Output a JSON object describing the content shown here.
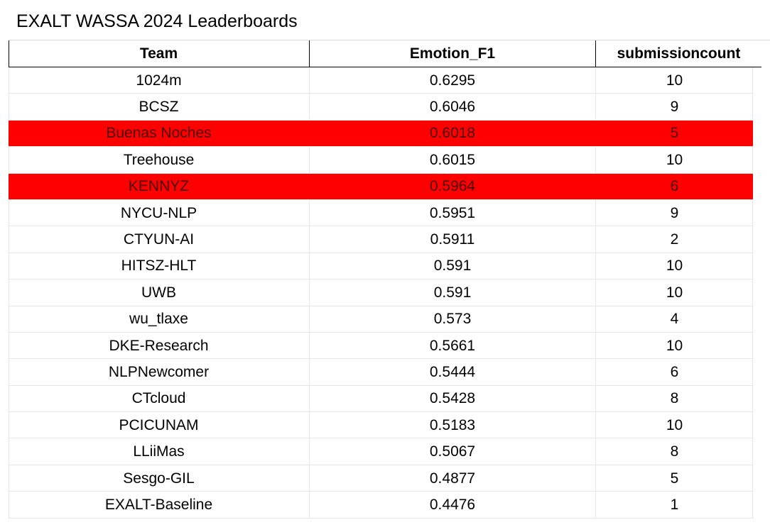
{
  "title": "EXALT WASSA 2024 Leaderboards",
  "colors": {
    "highlight": "#ff0000",
    "grid": "#e6e6e6",
    "header_rule": "#000000"
  },
  "columns": [
    "Team",
    "Emotion_F1",
    "submissioncount"
  ],
  "rows": [
    {
      "team": "1024m",
      "f1": "0.6295",
      "count": "10",
      "highlight": false
    },
    {
      "team": "BCSZ",
      "f1": "0.6046",
      "count": "9",
      "highlight": false
    },
    {
      "team": "Buenas Noches",
      "f1": "0.6018",
      "count": "5",
      "highlight": true
    },
    {
      "team": "Treehouse",
      "f1": "0.6015",
      "count": "10",
      "highlight": false
    },
    {
      "team": "KENNYZ",
      "f1": "0.5964",
      "count": "6",
      "highlight": true
    },
    {
      "team": "NYCU-NLP",
      "f1": "0.5951",
      "count": "9",
      "highlight": false
    },
    {
      "team": "CTYUN-AI",
      "f1": "0.5911",
      "count": "2",
      "highlight": false
    },
    {
      "team": "HITSZ-HLT",
      "f1": "0.591",
      "count": "10",
      "highlight": false
    },
    {
      "team": "UWB",
      "f1": "0.591",
      "count": "10",
      "highlight": false
    },
    {
      "team": "wu_tlaxe",
      "f1": "0.573",
      "count": "4",
      "highlight": false
    },
    {
      "team": "DKE-Research",
      "f1": "0.5661",
      "count": "10",
      "highlight": false
    },
    {
      "team": "NLPNewcomer",
      "f1": "0.5444",
      "count": "6",
      "highlight": false
    },
    {
      "team": "CTcloud",
      "f1": "0.5428",
      "count": "8",
      "highlight": false
    },
    {
      "team": "PCICUNAM",
      "f1": "0.5183",
      "count": "10",
      "highlight": false
    },
    {
      "team": "LLiiMas",
      "f1": "0.5067",
      "count": "8",
      "highlight": false
    },
    {
      "team": "Sesgo-GIL",
      "f1": "0.4877",
      "count": "5",
      "highlight": false
    },
    {
      "team": "EXALT-Baseline",
      "f1": "0.4476",
      "count": "1",
      "highlight": false
    }
  ]
}
